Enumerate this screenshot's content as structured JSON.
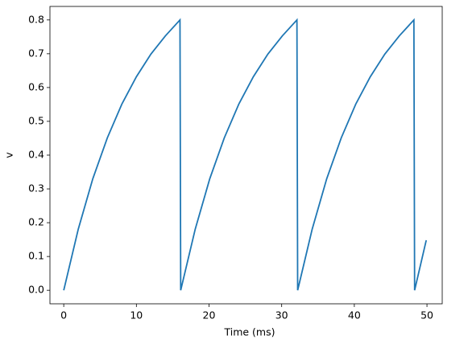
{
  "chart_data": {
    "type": "line",
    "xlabel": "Time (ms)",
    "ylabel": "v",
    "x": [
      0,
      2,
      4,
      6,
      8,
      10,
      12,
      14,
      16.0,
      16.1,
      18.1,
      20.1,
      22.1,
      24.1,
      26.1,
      28.1,
      30.1,
      32.1,
      32.2,
      34.2,
      36.2,
      38.2,
      40.2,
      42.2,
      44.2,
      46.2,
      48.2,
      48.3,
      49.9
    ],
    "series": [
      {
        "name": "v",
        "color": "#1f77b4",
        "values": [
          0,
          0.181,
          0.33,
          0.451,
          0.551,
          0.632,
          0.699,
          0.753,
          0.8,
          0,
          0.181,
          0.33,
          0.451,
          0.551,
          0.632,
          0.699,
          0.753,
          0.8,
          0,
          0.181,
          0.33,
          0.451,
          0.551,
          0.632,
          0.699,
          0.753,
          0.8,
          0,
          0.148
        ]
      }
    ],
    "xlim": [
      -1.9,
      52.1
    ],
    "xticks": [
      0,
      10,
      20,
      30,
      40,
      50
    ],
    "ylim": [
      -0.04,
      0.84
    ],
    "yticks": [
      {
        "value": 0,
        "label": "0.0"
      },
      0.1,
      0.2,
      0.3,
      0.4,
      0.5,
      0.6,
      0.7,
      0.8
    ]
  }
}
